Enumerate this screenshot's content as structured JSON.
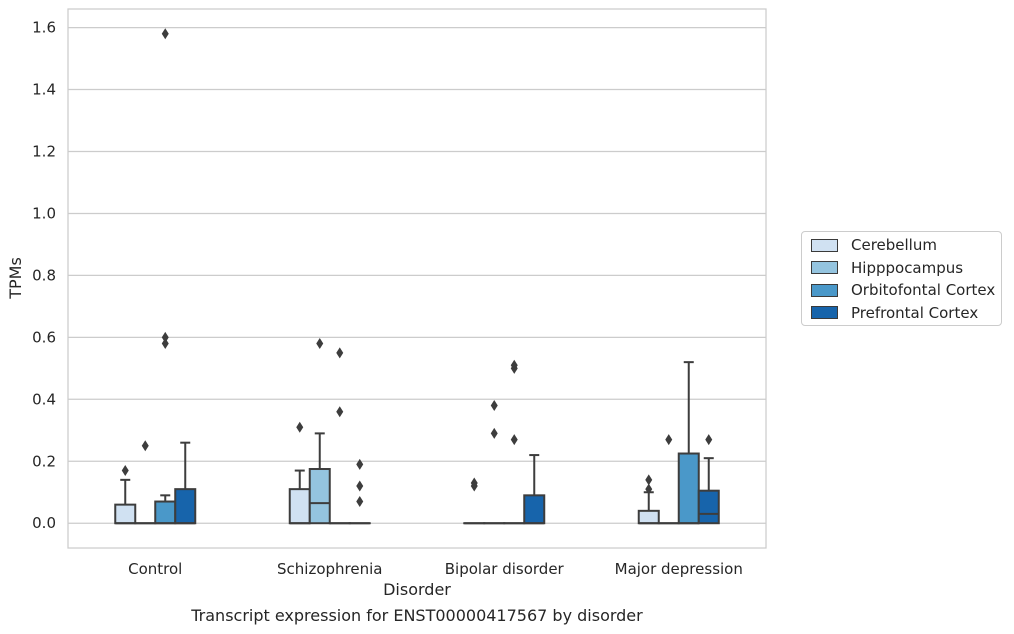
{
  "chart_data": {
    "type": "box",
    "title": "",
    "caption": "Transcript expression for ENST00000417567 by disorder",
    "xlabel": "Disorder",
    "ylabel": "TPMs",
    "ylim": [
      -0.08,
      1.66
    ],
    "yticks": [
      0.0,
      0.2,
      0.4,
      0.6,
      0.8,
      1.0,
      1.2,
      1.4,
      1.6
    ],
    "ytick_labels": [
      "0.0",
      "0.2",
      "0.4",
      "0.6",
      "0.8",
      "1.0",
      "1.2",
      "1.4",
      "1.6"
    ],
    "grid": true,
    "legend_position": "right",
    "categories": [
      "Control",
      "Schizophrenia",
      "Bipolar disorder",
      "Major depression"
    ],
    "series": [
      {
        "name": "Cerebellum",
        "color": "#d0e1f2",
        "boxes": [
          {
            "q1": 0.0,
            "median": 0.0,
            "q3": 0.06,
            "whisker_low": 0.0,
            "whisker_high": 0.14,
            "outliers": [
              0.17
            ]
          },
          {
            "q1": 0.0,
            "median": 0.0,
            "q3": 0.11,
            "whisker_low": 0.0,
            "whisker_high": 0.17,
            "outliers": [
              0.31
            ]
          },
          {
            "q1": 0.0,
            "median": 0.0,
            "q3": 0.0,
            "whisker_low": 0.0,
            "whisker_high": 0.0,
            "outliers": [
              0.12,
              0.13
            ]
          },
          {
            "q1": 0.0,
            "median": 0.0,
            "q3": 0.04,
            "whisker_low": 0.0,
            "whisker_high": 0.1,
            "outliers": [
              0.11,
              0.14
            ]
          }
        ]
      },
      {
        "name": "Hipppocampus",
        "color": "#94c4df",
        "boxes": [
          {
            "q1": 0.0,
            "median": 0.0,
            "q3": 0.0,
            "whisker_low": 0.0,
            "whisker_high": 0.0,
            "outliers": [
              0.25
            ]
          },
          {
            "q1": 0.0,
            "median": 0.065,
            "q3": 0.175,
            "whisker_low": 0.0,
            "whisker_high": 0.29,
            "outliers": [
              0.58
            ]
          },
          {
            "q1": 0.0,
            "median": 0.0,
            "q3": 0.0,
            "whisker_low": 0.0,
            "whisker_high": 0.0,
            "outliers": [
              0.29,
              0.38
            ]
          },
          {
            "q1": 0.0,
            "median": 0.0,
            "q3": 0.0,
            "whisker_low": 0.0,
            "whisker_high": 0.0,
            "outliers": [
              0.27
            ]
          }
        ]
      },
      {
        "name": "Orbitofontal Cortex",
        "color": "#4a98c9",
        "boxes": [
          {
            "q1": 0.0,
            "median": 0.0,
            "q3": 0.07,
            "whisker_low": 0.0,
            "whisker_high": 0.09,
            "outliers": [
              0.58,
              0.6,
              1.58
            ]
          },
          {
            "q1": 0.0,
            "median": 0.0,
            "q3": 0.0,
            "whisker_low": 0.0,
            "whisker_high": 0.0,
            "outliers": [
              0.36,
              0.55
            ]
          },
          {
            "q1": 0.0,
            "median": 0.0,
            "q3": 0.0,
            "whisker_low": 0.0,
            "whisker_high": 0.0,
            "outliers": [
              0.27,
              0.5,
              0.51
            ]
          },
          {
            "q1": 0.0,
            "median": 0.0,
            "q3": 0.225,
            "whisker_low": 0.0,
            "whisker_high": 0.52,
            "outliers": []
          }
        ]
      },
      {
        "name": "Prefrontal Cortex",
        "color": "#1764ab",
        "boxes": [
          {
            "q1": 0.0,
            "median": 0.0,
            "q3": 0.11,
            "whisker_low": 0.0,
            "whisker_high": 0.26,
            "outliers": []
          },
          {
            "q1": 0.0,
            "median": 0.0,
            "q3": 0.0,
            "whisker_low": 0.0,
            "whisker_high": 0.0,
            "outliers": [
              0.07,
              0.12,
              0.19
            ]
          },
          {
            "q1": 0.0,
            "median": 0.0,
            "q3": 0.09,
            "whisker_low": 0.0,
            "whisker_high": 0.22,
            "outliers": []
          },
          {
            "q1": 0.0,
            "median": 0.03,
            "q3": 0.105,
            "whisker_low": 0.0,
            "whisker_high": 0.21,
            "outliers": [
              0.27
            ]
          }
        ]
      }
    ]
  }
}
